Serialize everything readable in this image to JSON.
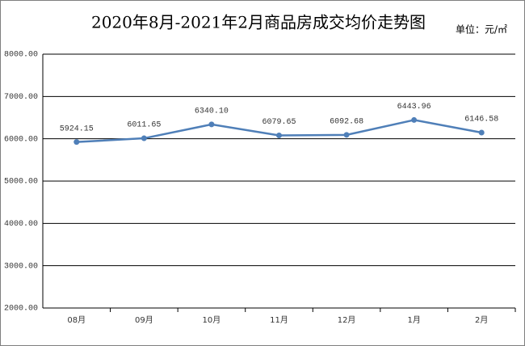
{
  "chart_data": {
    "type": "line",
    "title": "2020年8月-2021年2月商品房成交均价走势图",
    "unit": "单位：元/㎡",
    "categories": [
      "08月",
      "09月",
      "10月",
      "11月",
      "12月",
      "1月",
      "2月"
    ],
    "series": [
      {
        "color": "#4f7fb8",
        "values": [
          5924.15,
          6011.65,
          6340.1,
          6079.65,
          6092.68,
          6443.96,
          6146.58
        ],
        "value_labels": [
          "5924.15",
          "6011.65",
          "6340.10",
          "6079.65",
          "6092.68",
          "6443.96",
          "6146.58"
        ]
      }
    ],
    "ylim": [
      2000,
      8000
    ],
    "yticks": [
      {
        "value": 2000,
        "label": "2000.00"
      },
      {
        "value": 3000,
        "label": "3000.00"
      },
      {
        "value": 4000,
        "label": "4000.00"
      },
      {
        "value": 5000,
        "label": "5000.00"
      },
      {
        "value": 6000,
        "label": "6000.00"
      },
      {
        "value": 7000,
        "label": "7000.00"
      },
      {
        "value": 8000,
        "label": "8000.00"
      }
    ],
    "grid": true
  }
}
